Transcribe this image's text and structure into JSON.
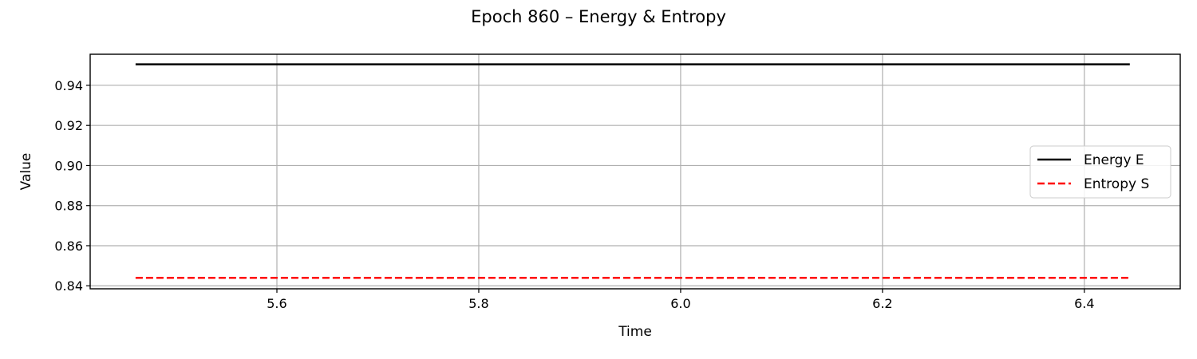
{
  "chart_data": {
    "type": "line",
    "title": "Epoch 860 – Energy & Entropy",
    "xlabel": "Time",
    "ylabel": "Value",
    "xlim": [
      5.415,
      6.495
    ],
    "ylim": [
      0.8385,
      0.9555
    ],
    "xticks": [
      5.6,
      5.8,
      6.0,
      6.2,
      6.4
    ],
    "xtick_labels": [
      "5.6",
      "5.8",
      "6.0",
      "6.2",
      "6.4"
    ],
    "yticks": [
      0.84,
      0.86,
      0.88,
      0.9,
      0.92,
      0.94
    ],
    "ytick_labels": [
      "0.84",
      "0.86",
      "0.88",
      "0.90",
      "0.92",
      "0.94"
    ],
    "grid": true,
    "legend_position": "center-right",
    "series": [
      {
        "name": "Energy E",
        "color": "#000000",
        "style": "solid",
        "x": [
          5.46,
          5.7,
          5.95,
          6.2,
          6.445
        ],
        "y": [
          0.9505,
          0.9505,
          0.9505,
          0.9505,
          0.9505
        ]
      },
      {
        "name": "Entropy S",
        "color": "#ff0000",
        "style": "dashed",
        "x": [
          5.46,
          5.7,
          5.95,
          6.2,
          6.445
        ],
        "y": [
          0.844,
          0.844,
          0.844,
          0.844,
          0.844
        ]
      }
    ]
  }
}
